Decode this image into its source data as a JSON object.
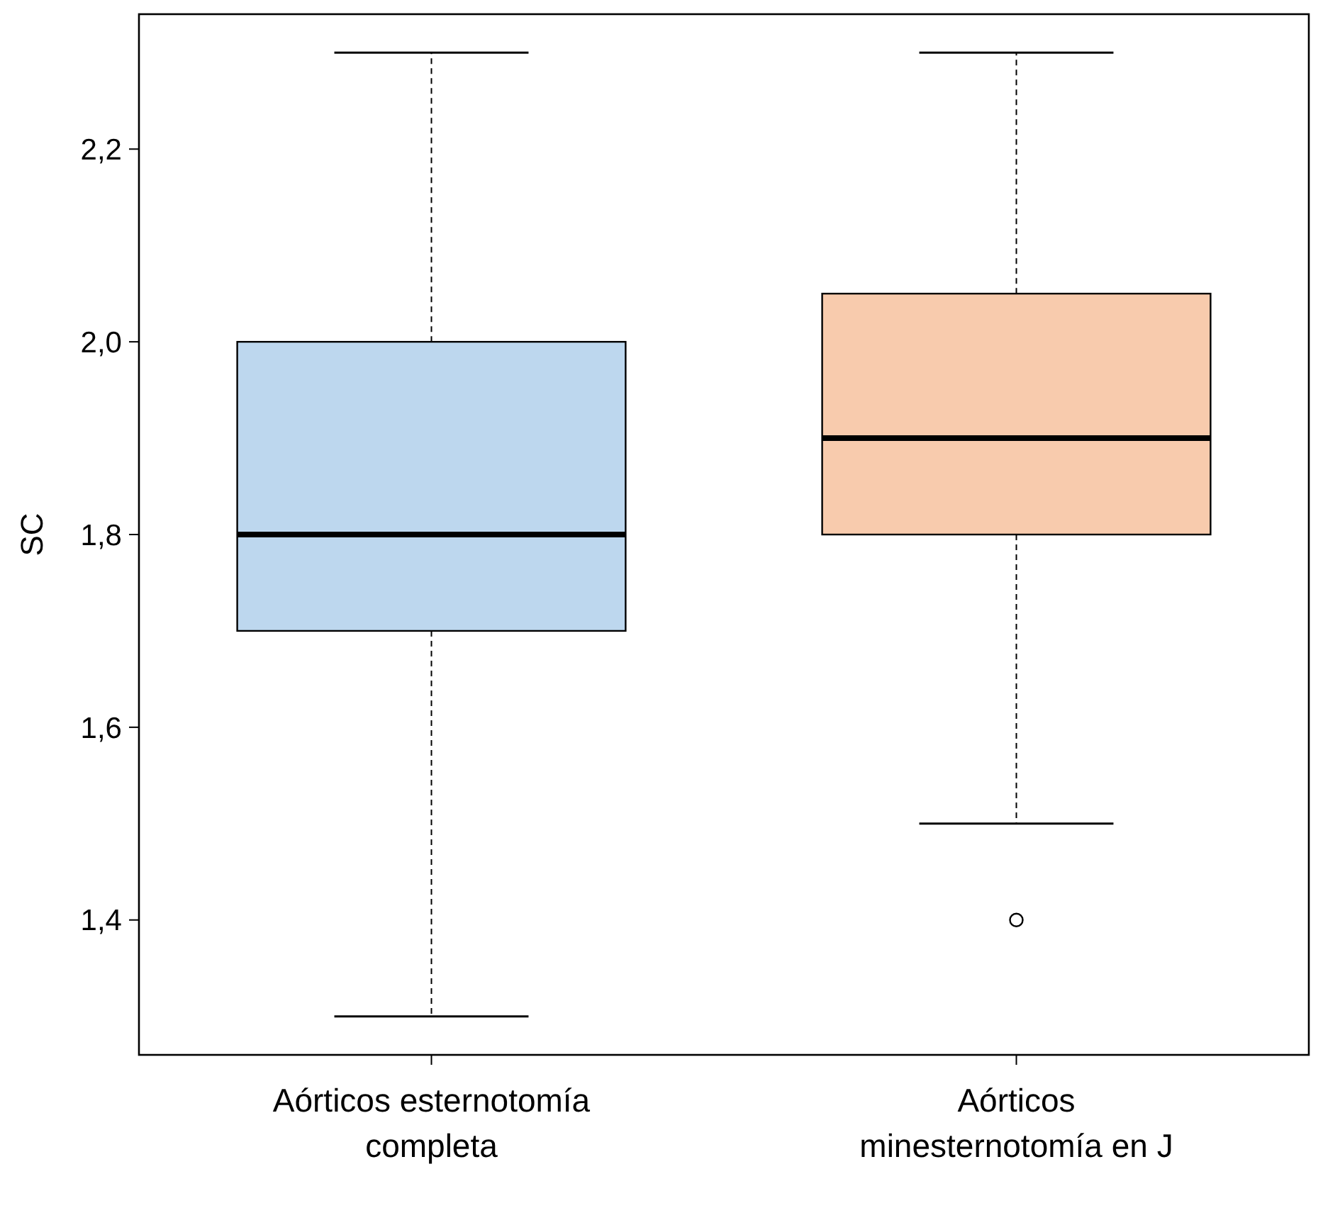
{
  "chart_data": {
    "type": "box",
    "ylabel": "SC",
    "categories": [
      "Aórticos esternotomía completa",
      "Aórticos minesternotomía en J"
    ],
    "colors": [
      "#bdd7ee",
      "#f8cbad"
    ],
    "boxes": [
      {
        "low": 1.3,
        "q1": 1.7,
        "median": 1.8,
        "q3": 2.0,
        "high": 2.3
      },
      {
        "low": 1.5,
        "q1": 1.8,
        "median": 1.9,
        "q3": 2.05,
        "high": 2.3,
        "outliers": [
          1.4
        ]
      }
    ],
    "ylim": [
      1.26,
      2.34
    ],
    "yticks": [
      {
        "value": 1.4,
        "label": "1,4"
      },
      {
        "value": 1.6,
        "label": "1,6"
      },
      {
        "value": 1.8,
        "label": "1,8"
      },
      {
        "value": 2.0,
        "label": "2,0"
      },
      {
        "value": 2.2,
        "label": "2,2"
      }
    ],
    "grid": false
  }
}
